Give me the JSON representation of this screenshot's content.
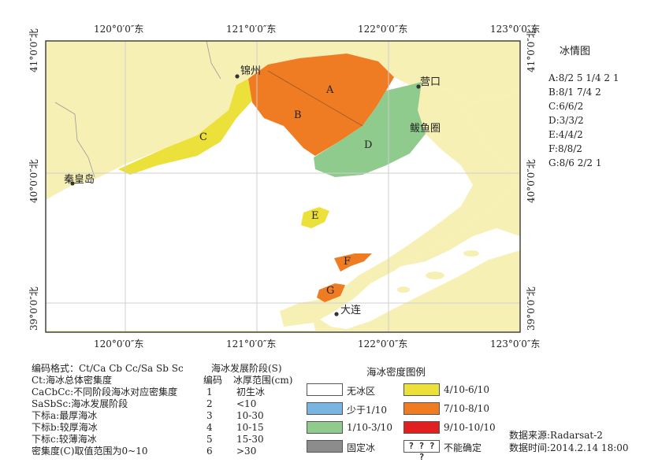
{
  "map": {
    "top_lon_ticks": [
      "120°0′0″东",
      "121°0′0″东",
      "122°0′0″东",
      "123°0′0″东"
    ],
    "bottom_lon_ticks": [
      "120°0′0″东",
      "121°0′0″东",
      "122°0′0″东",
      "123°0′0″东"
    ],
    "left_lat_ticks": [
      "41°0′0″北",
      "40°0′0″北",
      "39°0′0″北"
    ],
    "right_lat_ticks": [
      "41°0′0″北",
      "40°0′0″北",
      "39°0′0″北"
    ],
    "places": {
      "jinzhou": "锦州",
      "yingkou": "营口",
      "bayuquan": "鲅鱼圈",
      "qinhuangdao": "秦皇岛",
      "dalian": "大连"
    },
    "zone_labels": [
      "A",
      "B",
      "C",
      "D",
      "E",
      "F",
      "G"
    ],
    "colors": {
      "land": "#f7f0b5",
      "sea": "#ffffff",
      "zone_A_B_F_G": "#ef7b22",
      "zone_C_E": "#ece03a",
      "zone_D": "#8fcb8c",
      "small_amount": "#7ab4e0",
      "high_density": "#e02020",
      "fast_ice": "#8c8c8c"
    }
  },
  "ice_chart": {
    "title": "冰情图",
    "codes": [
      "A:8/2 5 1/4 2 1",
      "B:8/1 7/4 2",
      "C:6/6/2",
      "D:3/3/2",
      "E:4/4/2",
      "F:8/8/2",
      "G:8/6 2/2 1"
    ]
  },
  "coding_notes": [
    "编码格式：Ct/Ca Cb Cc/Sa Sb Sc",
    "Ct:海冰总体密集度",
    "CaCbCc:不同阶段海冰对应密集度",
    "SaSbSc:海冰发展阶段",
    "下标a:最厚海冰",
    "下标b:较厚海冰",
    "下标c:较薄海冰",
    "密集度(C)取值范围为0~10"
  ],
  "stage_table": {
    "title": "海冰发展阶段(S)",
    "header_code": "编码",
    "header_thickness": "冰厚范围(cm)",
    "rows": [
      {
        "code": "1",
        "range": "初生冰"
      },
      {
        "code": "2",
        "range": "<10"
      },
      {
        "code": "3",
        "range": "10-30"
      },
      {
        "code": "4",
        "range": "10-15"
      },
      {
        "code": "5",
        "range": "15-30"
      },
      {
        "code": "6",
        "range": ">30"
      }
    ]
  },
  "density_legend": {
    "title": "海冰密度图例",
    "items": [
      {
        "label": "无冰区",
        "color": "#ffffff"
      },
      {
        "label": "少于1/10",
        "color": "#7ab4e0"
      },
      {
        "label": "1/10-3/10",
        "color": "#8fcb8c"
      },
      {
        "label": "固定冰",
        "color": "#8c8c8c"
      },
      {
        "label": "4/10-6/10",
        "color": "#ece03a"
      },
      {
        "label": "7/10-8/10",
        "color": "#ef7b22"
      },
      {
        "label": "9/10-10/10",
        "color": "#e02020"
      },
      {
        "label": "不能确定",
        "color": "#ffffff",
        "pattern": "? ? ? ?"
      }
    ]
  },
  "source": {
    "data_source": "数据来源:Radarsat-2",
    "data_time": "数据时间:2014.2.14 18:00"
  }
}
